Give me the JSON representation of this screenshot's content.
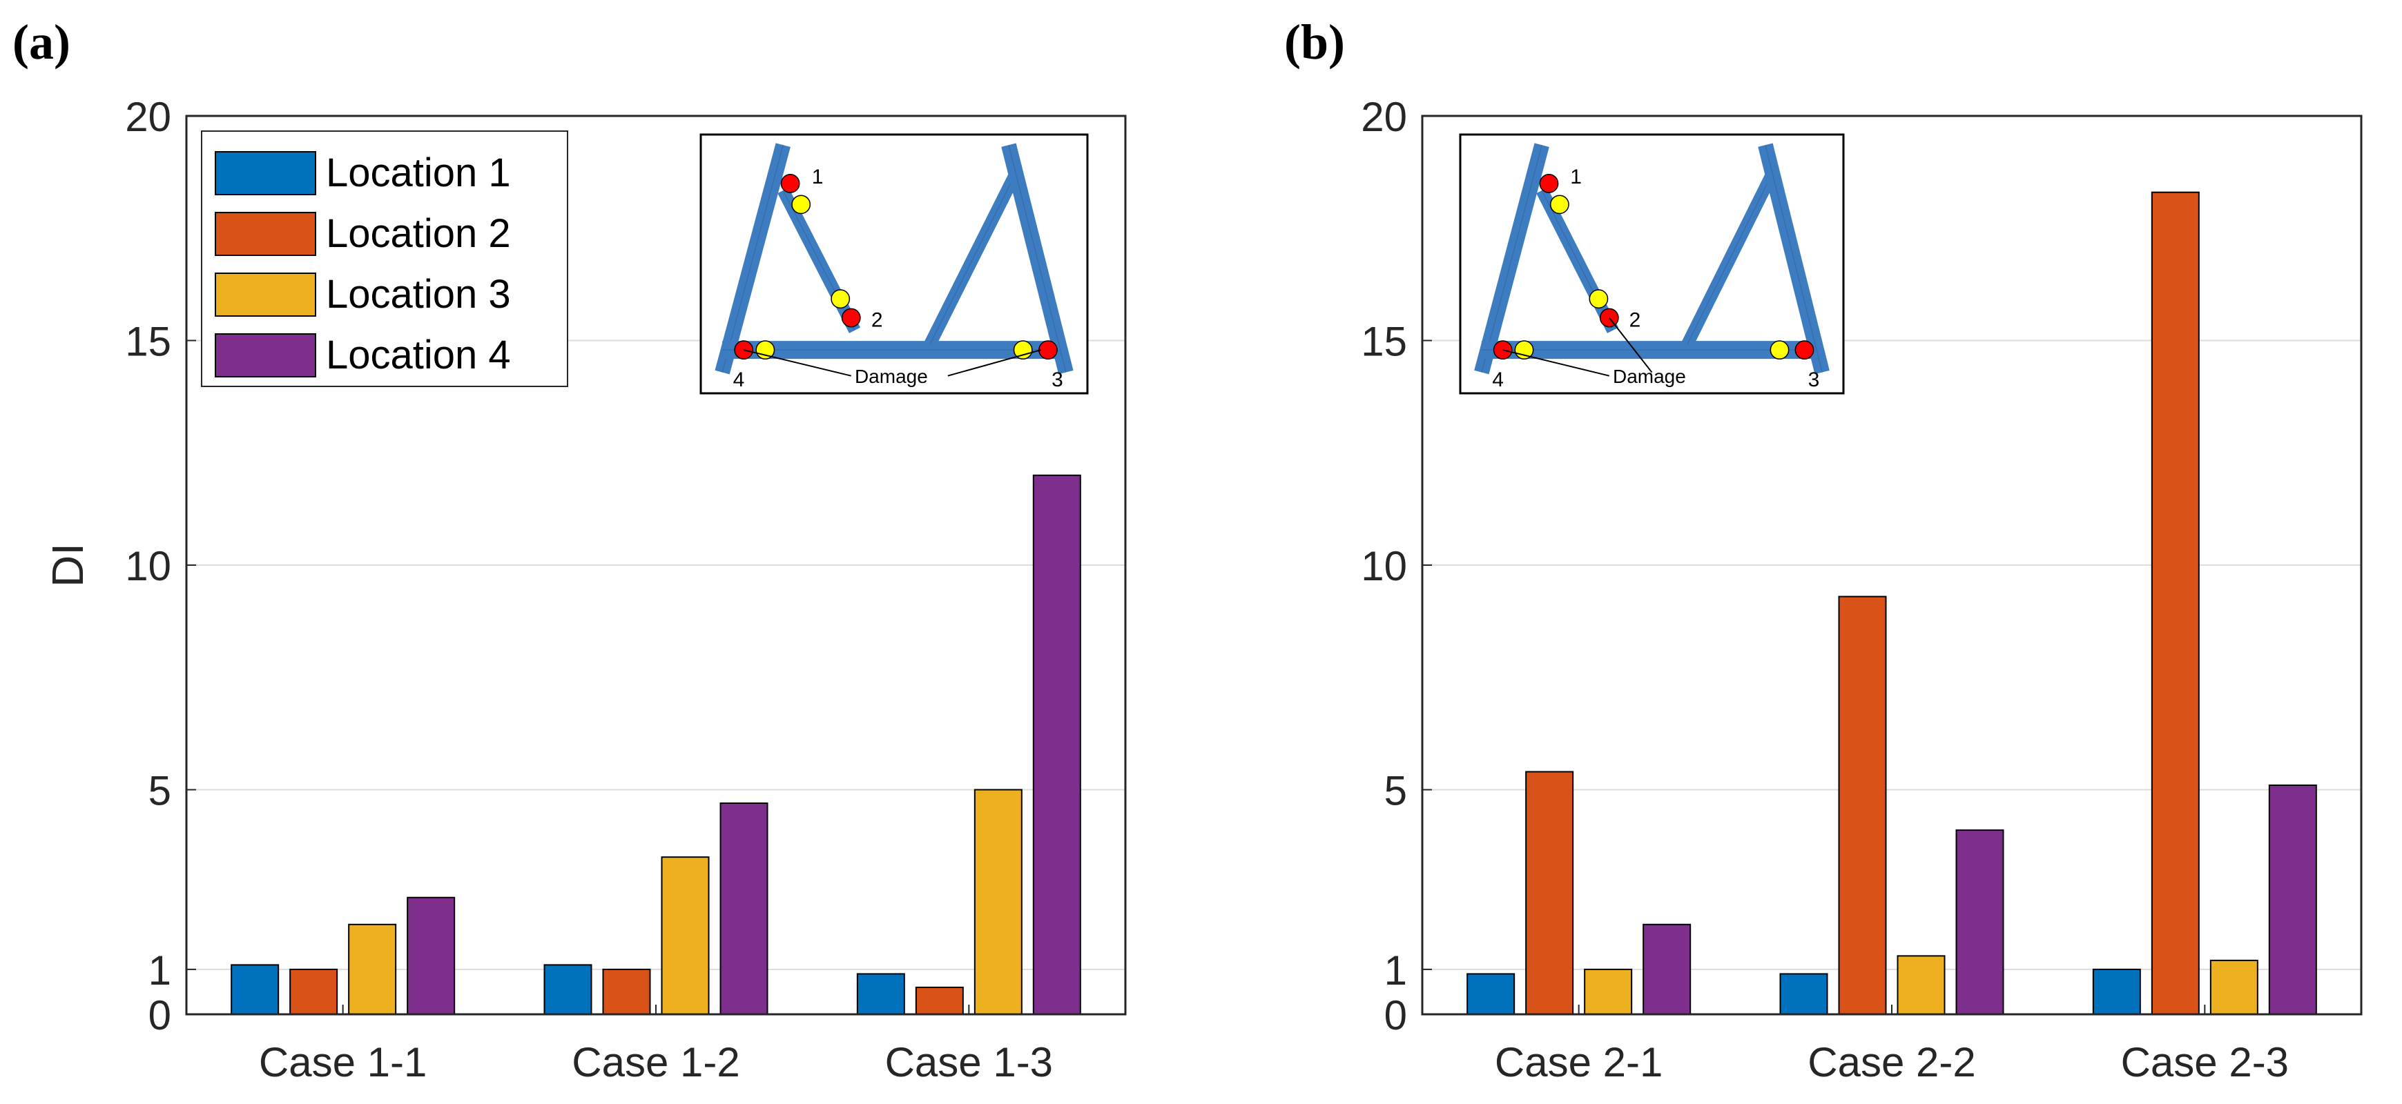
{
  "colors": {
    "location1": "#0072BD",
    "location2": "#D95319",
    "location3": "#EDB120",
    "location4": "#7E2F8E",
    "member": "#3D7CC0",
    "sensor": "#FFFF00",
    "damage": "#FF0000"
  },
  "legend": [
    "Location 1",
    "Location 2",
    "Location 3",
    "Location 4"
  ],
  "inset": {
    "node_labels": [
      "1",
      "2",
      "3",
      "4"
    ],
    "damage_label": "Damage"
  },
  "chart_data": [
    {
      "type": "bar",
      "panel_label": "(a)",
      "categories": [
        "Case 1-1",
        "Case 1-2",
        "Case 1-3"
      ],
      "series": [
        {
          "name": "Location 1",
          "values": [
            1.1,
            1.1,
            0.9
          ]
        },
        {
          "name": "Location 2",
          "values": [
            1.0,
            1.0,
            0.6
          ]
        },
        {
          "name": "Location 3",
          "values": [
            2.0,
            3.5,
            5.0
          ]
        },
        {
          "name": "Location 4",
          "values": [
            2.6,
            4.7,
            12.0
          ]
        }
      ],
      "ylabel": "DI",
      "xlabel": "",
      "ylim": [
        0,
        20
      ],
      "yticks": [
        0,
        1,
        5,
        10,
        15,
        20
      ],
      "grid": true,
      "legend": true,
      "legend_location": "top-left",
      "inset_damage_locations": [
        1,
        2,
        3,
        4
      ]
    },
    {
      "type": "bar",
      "panel_label": "(b)",
      "categories": [
        "Case 2-1",
        "Case 2-2",
        "Case 2-3"
      ],
      "series": [
        {
          "name": "Location 1",
          "values": [
            0.9,
            0.9,
            1.0
          ]
        },
        {
          "name": "Location 2",
          "values": [
            5.4,
            9.3,
            18.3
          ]
        },
        {
          "name": "Location 3",
          "values": [
            1.0,
            1.3,
            1.2
          ]
        },
        {
          "name": "Location 4",
          "values": [
            2.0,
            4.1,
            5.1
          ]
        }
      ],
      "ylabel": "",
      "xlabel": "",
      "ylim": [
        0,
        20
      ],
      "yticks": [
        0,
        1,
        5,
        10,
        15,
        20
      ],
      "grid": true,
      "legend": false,
      "inset_damage_locations": [
        1,
        2,
        3,
        4
      ]
    }
  ]
}
